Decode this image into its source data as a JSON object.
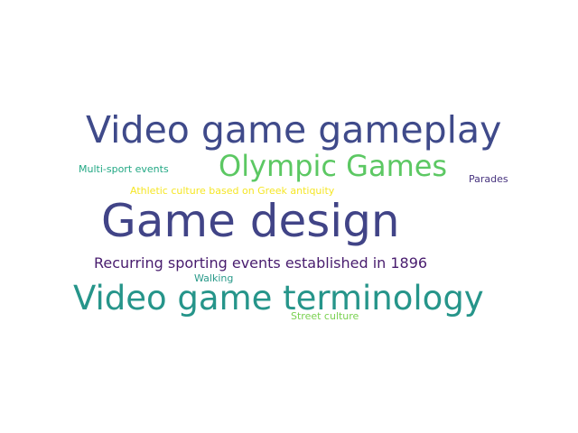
{
  "words": [
    {
      "text": "Video game gameplay",
      "color": "#3f4a8a"
    },
    {
      "text": "Olympic Games",
      "color": "#5cc863"
    },
    {
      "text": "Multi-sport events",
      "color": "#22a884"
    },
    {
      "text": "Parades",
      "color": "#46327e"
    },
    {
      "text": "Athletic culture based on Greek antiquity",
      "color": "#f5e626"
    },
    {
      "text": "Game design",
      "color": "#414487"
    },
    {
      "text": "Recurring sporting events established in 1896",
      "color": "#481c6e"
    },
    {
      "text": "Walking",
      "color": "#2a9a8a"
    },
    {
      "text": "Video game terminology",
      "color": "#26958a"
    },
    {
      "text": "Street culture",
      "color": "#7ad151"
    }
  ]
}
